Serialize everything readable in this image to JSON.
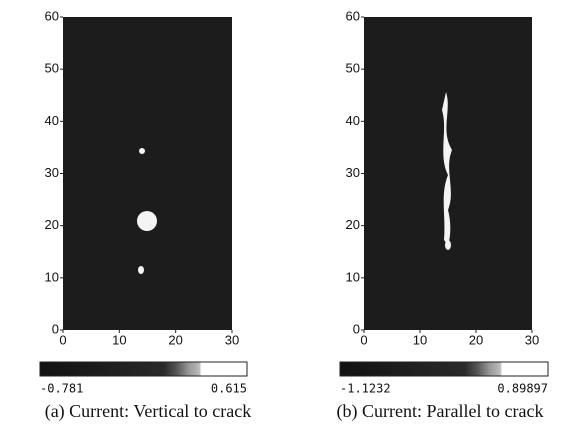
{
  "chart_data": [
    {
      "type": "heatmap",
      "title": "(a) Current: Vertical to crack",
      "xlim": [
        0,
        30
      ],
      "xticks": [
        0,
        10,
        20,
        30
      ],
      "ylim": [
        0,
        60
      ],
      "yticks": [
        0,
        10,
        20,
        30,
        40,
        50,
        60
      ],
      "clim": [
        -0.781,
        0.615
      ]
    },
    {
      "type": "heatmap",
      "title": "(b) Current: Parallel to crack",
      "xlim": [
        0,
        30
      ],
      "xticks": [
        0,
        10,
        20,
        30
      ],
      "ylim": [
        0,
        60
      ],
      "yticks": [
        0,
        10,
        20,
        30,
        40,
        50,
        60
      ],
      "clim": [
        -1.1232,
        0.89897
      ]
    }
  ]
}
